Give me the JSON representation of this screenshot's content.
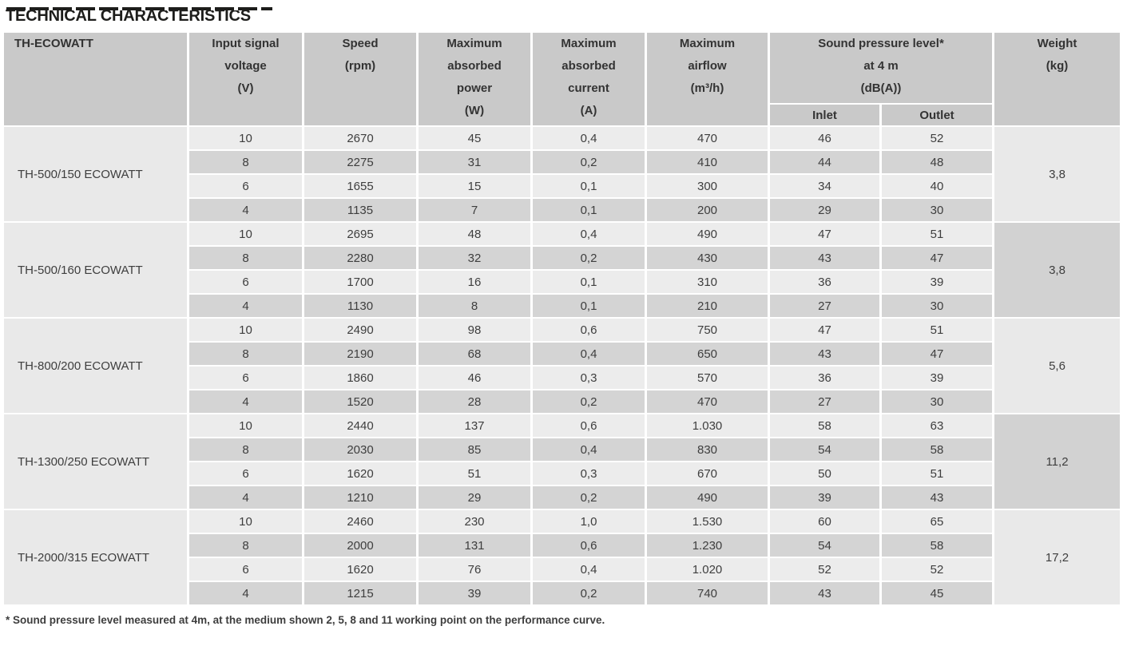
{
  "title": "TECHNICAL CHARACTERISTICS",
  "table": {
    "corner": "TH-ECOWATT",
    "headers": {
      "voltage": "Input signal\nvoltage\n(V)",
      "speed": "Speed\n(rpm)",
      "power": "Maximum\nabsorbed\npower\n(W)",
      "current": "Maximum\nabsorbed\ncurrent\n(A)",
      "airflow": "Maximum\nairflow\n(m³/h)",
      "sound": "Sound pressure level*\nat 4 m\n(dB(A))",
      "inlet": "Inlet",
      "outlet": "Outlet",
      "weight": "Weight\n(kg)"
    },
    "column_keys": [
      "voltage",
      "speed",
      "power",
      "current",
      "airflow",
      "inlet",
      "outlet"
    ],
    "groups": [
      {
        "model": "TH-500/150 ECOWATT",
        "weight": "3,8",
        "rows": [
          [
            "10",
            "2670",
            "45",
            "0,4",
            "470",
            "46",
            "52"
          ],
          [
            "8",
            "2275",
            "31",
            "0,2",
            "410",
            "44",
            "48"
          ],
          [
            "6",
            "1655",
            "15",
            "0,1",
            "300",
            "34",
            "40"
          ],
          [
            "4",
            "1135",
            "7",
            "0,1",
            "200",
            "29",
            "30"
          ]
        ]
      },
      {
        "model": "TH-500/160 ECOWATT",
        "weight": "3,8",
        "rows": [
          [
            "10",
            "2695",
            "48",
            "0,4",
            "490",
            "47",
            "51"
          ],
          [
            "8",
            "2280",
            "32",
            "0,2",
            "430",
            "43",
            "47"
          ],
          [
            "6",
            "1700",
            "16",
            "0,1",
            "310",
            "36",
            "39"
          ],
          [
            "4",
            "1130",
            "8",
            "0,1",
            "210",
            "27",
            "30"
          ]
        ]
      },
      {
        "model": "TH-800/200 ECOWATT",
        "weight": "5,6",
        "rows": [
          [
            "10",
            "2490",
            "98",
            "0,6",
            "750",
            "47",
            "51"
          ],
          [
            "8",
            "2190",
            "68",
            "0,4",
            "650",
            "43",
            "47"
          ],
          [
            "6",
            "1860",
            "46",
            "0,3",
            "570",
            "36",
            "39"
          ],
          [
            "4",
            "1520",
            "28",
            "0,2",
            "470",
            "27",
            "30"
          ]
        ]
      },
      {
        "model": "TH-1300/250 ECOWATT",
        "weight": "11,2",
        "rows": [
          [
            "10",
            "2440",
            "137",
            "0,6",
            "1.030",
            "58",
            "63"
          ],
          [
            "8",
            "2030",
            "85",
            "0,4",
            "830",
            "54",
            "58"
          ],
          [
            "6",
            "1620",
            "51",
            "0,3",
            "670",
            "50",
            "51"
          ],
          [
            "4",
            "1210",
            "29",
            "0,2",
            "490",
            "39",
            "43"
          ]
        ]
      },
      {
        "model": "TH-2000/315 ECOWATT",
        "weight": "17,2",
        "rows": [
          [
            "10",
            "2460",
            "230",
            "1,0",
            "1.530",
            "60",
            "65"
          ],
          [
            "8",
            "2000",
            "131",
            "0,6",
            "1.230",
            "54",
            "58"
          ],
          [
            "6",
            "1620",
            "76",
            "0,4",
            "1.020",
            "52",
            "52"
          ],
          [
            "4",
            "1215",
            "39",
            "0,2",
            "740",
            "43",
            "45"
          ]
        ]
      }
    ]
  },
  "footnote": "* Sound pressure level measured at 4m, at the medium shown 2, 5, 8 and 11 working point on the performance curve.",
  "colors": {
    "header_bg": "#c9c9c9",
    "row_light": "#ececec",
    "row_dark": "#d4d4d4",
    "group_cell_light": "#e9e9e9",
    "group_cell_dark": "#d2d2d2",
    "text": "#3e3e3e"
  }
}
